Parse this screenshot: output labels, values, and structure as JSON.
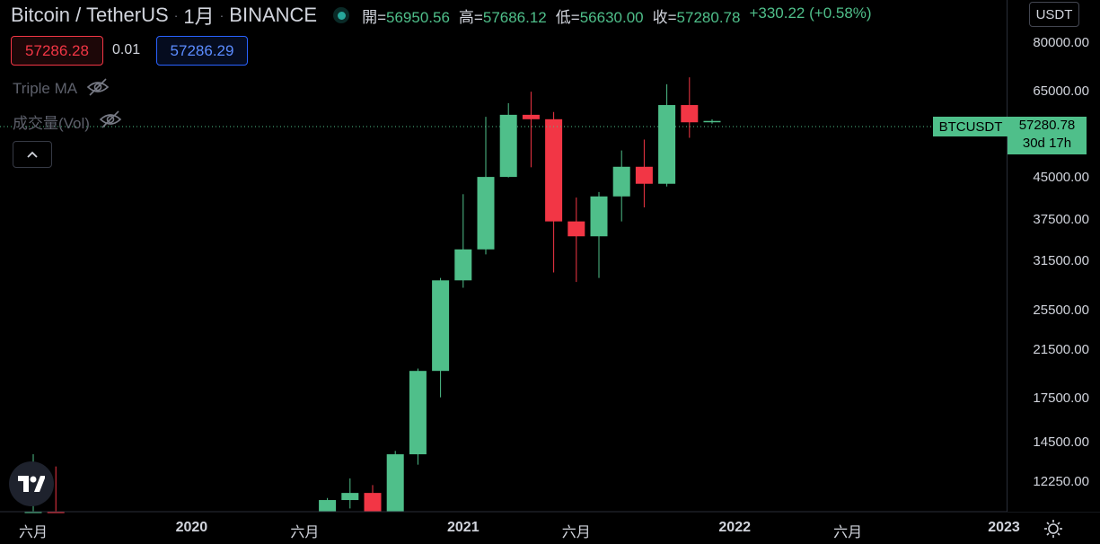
{
  "header": {
    "symbol": "Bitcoin / TetherUS",
    "interval": "1月",
    "exchange": "BINANCE",
    "separator": "·",
    "ohlc": [
      {
        "key": "開=",
        "value": "56950.56"
      },
      {
        "key": "高=",
        "value": "57686.12"
      },
      {
        "key": "低=",
        "value": "56630.00"
      },
      {
        "key": "收=",
        "value": "57280.78"
      }
    ],
    "change": "+330.22 (+0.58%)"
  },
  "trade": {
    "bid": "57286.28",
    "spread": "0.01",
    "ask": "57286.29"
  },
  "indicators": [
    {
      "label": "Triple MA",
      "icon": "eye-off-icon"
    },
    {
      "label": "成交量(Vol)",
      "icon": "eye-off-icon"
    }
  ],
  "currency_button": "USDT",
  "last_price": {
    "symbol": "BTCUSDT",
    "price": "57280.78",
    "countdown": "30d 17h"
  },
  "colors": {
    "up": "#4fbf8a",
    "down": "#f23645",
    "background": "#000000",
    "accent": "#2962ff"
  },
  "chart_data": {
    "type": "candlestick",
    "y_scale": "log",
    "ylim": [
      10800,
      96000
    ],
    "y_ticks": [
      "80000.00",
      "65000.00",
      "45000.00",
      "37500.00",
      "31500.00",
      "25500.00",
      "21500.00",
      "17500.00",
      "14500.00",
      "12250.00"
    ],
    "x_ticks": [
      {
        "label": "六月",
        "month": "2019-06",
        "year": false
      },
      {
        "label": "2020",
        "month": "2020-01",
        "year": true
      },
      {
        "label": "六月",
        "month": "2020-06",
        "year": false
      },
      {
        "label": "2021",
        "month": "2021-01",
        "year": true
      },
      {
        "label": "六月",
        "month": "2021-06",
        "year": false
      },
      {
        "label": "2022",
        "month": "2022-01",
        "year": true
      },
      {
        "label": "六月",
        "month": "2022-06",
        "year": false
      },
      {
        "label": "2023",
        "month": "2023-01",
        "year": true
      }
    ],
    "candles": [
      {
        "month": "2019-06",
        "open": 8600,
        "high": 13800,
        "low": 7500,
        "close": 10800
      },
      {
        "month": "2019-07",
        "open": 10800,
        "high": 13100,
        "low": 9100,
        "close": 10100
      },
      {
        "month": "2020-07",
        "open": 9100,
        "high": 11450,
        "low": 8950,
        "close": 11350
      },
      {
        "month": "2020-08",
        "open": 11350,
        "high": 12450,
        "low": 10950,
        "close": 11700
      },
      {
        "month": "2020-09",
        "open": 11700,
        "high": 12100,
        "low": 9900,
        "close": 10800
      },
      {
        "month": "2020-10",
        "open": 10800,
        "high": 14000,
        "low": 10400,
        "close": 13800
      },
      {
        "month": "2020-11",
        "open": 13800,
        "high": 19900,
        "low": 13200,
        "close": 19700
      },
      {
        "month": "2020-12",
        "open": 19700,
        "high": 29300,
        "low": 17600,
        "close": 29000
      },
      {
        "month": "2021-01",
        "open": 29000,
        "high": 41900,
        "low": 28100,
        "close": 33100
      },
      {
        "month": "2021-02",
        "open": 33100,
        "high": 58300,
        "low": 32400,
        "close": 45100
      },
      {
        "month": "2021-03",
        "open": 45100,
        "high": 61800,
        "low": 45000,
        "close": 58800
      },
      {
        "month": "2021-04",
        "open": 58800,
        "high": 64900,
        "low": 47000,
        "close": 57700
      },
      {
        "month": "2021-05",
        "open": 57700,
        "high": 59500,
        "low": 30000,
        "close": 37300
      },
      {
        "month": "2021-06",
        "open": 37300,
        "high": 41300,
        "low": 28800,
        "close": 35000
      },
      {
        "month": "2021-07",
        "open": 35000,
        "high": 42300,
        "low": 29300,
        "close": 41500
      },
      {
        "month": "2021-08",
        "open": 41500,
        "high": 50500,
        "low": 37300,
        "close": 47100
      },
      {
        "month": "2021-09",
        "open": 47100,
        "high": 52900,
        "low": 39600,
        "close": 43800
      },
      {
        "month": "2021-10",
        "open": 43800,
        "high": 67000,
        "low": 43300,
        "close": 61300
      },
      {
        "month": "2021-11",
        "open": 61300,
        "high": 69000,
        "low": 53300,
        "close": 56950
      },
      {
        "month": "2021-12",
        "open": 56950,
        "high": 57686,
        "low": 56630,
        "close": 57280
      }
    ]
  }
}
